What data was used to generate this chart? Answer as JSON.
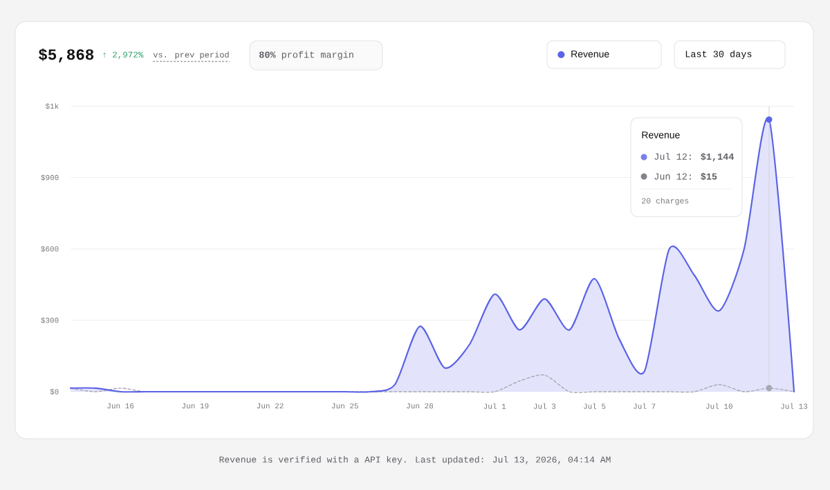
{
  "chart_data": {
    "type": "area",
    "title": "$5,868",
    "x": [
      "2026-06-14",
      "2026-06-15",
      "2026-06-16",
      "2026-06-17",
      "2026-06-18",
      "2026-06-19",
      "2026-06-20",
      "2026-06-21",
      "2026-06-22",
      "2026-06-23",
      "2026-06-24",
      "2026-06-25",
      "2026-06-26",
      "2026-06-27",
      "2026-06-28",
      "2026-06-29",
      "2026-06-30",
      "2026-07-01",
      "2026-07-02",
      "2026-07-03",
      "2026-07-04",
      "2026-07-05",
      "2026-07-06",
      "2026-07-07",
      "2026-07-08",
      "2026-07-09",
      "2026-07-10",
      "2026-07-11",
      "2026-07-12",
      "2026-07-13"
    ],
    "series": [
      {
        "name": "Revenue",
        "color": "#5b63e6",
        "values": [
          15,
          15,
          0,
          0,
          0,
          0,
          0,
          0,
          0,
          0,
          0,
          0,
          0,
          30,
          275,
          100,
          200,
          410,
          260,
          390,
          260,
          475,
          220,
          85,
          600,
          490,
          340,
          600,
          1144,
          0
        ]
      },
      {
        "type": "line",
        "color": "#a9a9b3",
        "line_style": "dashed",
        "values": [
          15,
          0,
          15,
          0,
          0,
          0,
          0,
          0,
          0,
          0,
          0,
          0,
          0,
          0,
          0,
          0,
          0,
          0,
          45,
          70,
          0,
          0,
          0,
          0,
          0,
          0,
          30,
          0,
          15,
          0
        ]
      }
    ],
    "xlim": [
      "2026-06-14",
      "2026-07-13"
    ],
    "xticks": [
      {
        "value": "2026-06-16",
        "label": "Jun 16"
      },
      {
        "value": "2026-06-19",
        "label": "Jun 19"
      },
      {
        "value": "2026-06-22",
        "label": "Jun 22"
      },
      {
        "value": "2026-06-25",
        "label": "Jun 25"
      },
      {
        "value": "2026-06-28",
        "label": "Jun 28"
      },
      {
        "value": "2026-07-01",
        "label": "Jul 1"
      },
      {
        "value": "2026-07-03",
        "label": "Jul 3"
      },
      {
        "value": "2026-07-05",
        "label": "Jul 5"
      },
      {
        "value": "2026-07-07",
        "label": "Jul 7"
      },
      {
        "value": "2026-07-10",
        "label": "Jul 10"
      },
      {
        "value": "2026-07-13",
        "label": "Jul 13"
      }
    ],
    "ylim": [
      0,
      1200
    ],
    "yticks": [
      {
        "value": 0,
        "label": "$0"
      },
      {
        "value": 300,
        "label": "$300"
      },
      {
        "value": 600,
        "label": "$600"
      },
      {
        "value": 900,
        "label": "$900"
      },
      {
        "value": 1200,
        "label": "$1k"
      }
    ],
    "grid": "y",
    "legend": "top right",
    "ref_lines": [
      {
        "axis": "x",
        "value": "2026-07-12",
        "color": "#d0d0d8"
      }
    ],
    "annotations": [
      "↑ 2,972%",
      "vs. prev period",
      "**80%** profit margin",
      "Last 30 days",
      "Revenue",
      "Jul 12: **$1,144**",
      "Jun 12: **$15**",
      "20 charges",
      "Revenue is verified with a API key. Last updated: Jul 13, 2026, 04:14 AM"
    ]
  }
}
